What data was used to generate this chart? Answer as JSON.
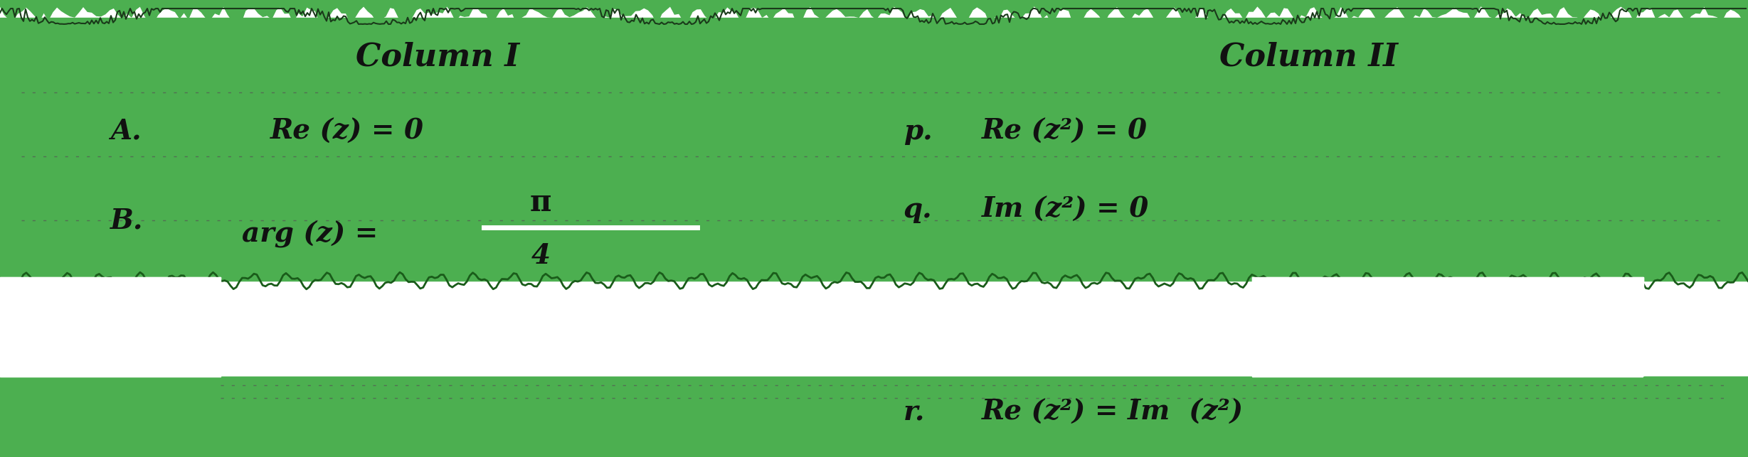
{
  "bg_color": "#4caf50",
  "text_color": "#111111",
  "white_color": "#ffffff",
  "title_col1": "Column I",
  "title_col2": "Column II",
  "row_A_label": "A.",
  "row_A_col1": "Re (z) = 0",
  "row_B_label": "B.",
  "row_B_col1_pre": "arg (z) =",
  "row_B_numerator": "π",
  "row_B_denominator": "4",
  "row_p_label": "p.",
  "row_p_col2": "Re (z²) = 0",
  "row_q_label": "q.",
  "row_q_col2": "Im (z²) = 0",
  "row_r_label": "r.",
  "row_r_col2": "Re (z²) = Im  (z²)",
  "figsize": [
    24.57,
    6.43
  ],
  "dpi": 100,
  "jagged_color": "#222222",
  "dot_line_color": "#555555"
}
